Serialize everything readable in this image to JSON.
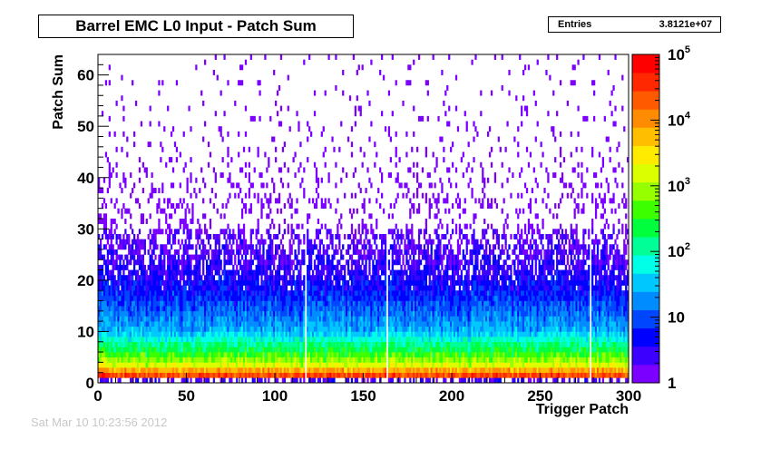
{
  "chart_data": {
    "type": "heatmap",
    "title": "Barrel EMC L0 Input - Patch Sum",
    "xlabel": "Trigger Patch",
    "ylabel": "Patch Sum",
    "xlim": [
      0,
      300
    ],
    "ylim": [
      0,
      64
    ],
    "x_ticks": [
      "0",
      "50",
      "100",
      "150",
      "200",
      "250",
      "300"
    ],
    "y_ticks": [
      "0",
      "10",
      "20",
      "30",
      "40",
      "50",
      "60"
    ],
    "z_scale": "log",
    "zlim": [
      1,
      100000
    ],
    "colorbar_ticks": [
      {
        "base": "1",
        "exp": ""
      },
      {
        "base": "10",
        "exp": ""
      },
      {
        "base": "10",
        "exp": "2"
      },
      {
        "base": "10",
        "exp": "3"
      },
      {
        "base": "10",
        "exp": "4"
      },
      {
        "base": "10",
        "exp": "5"
      }
    ],
    "stats": {
      "label": "Entries",
      "value": "3.8121e+07"
    },
    "dead_patches": [
      117,
      163,
      278
    ],
    "profile": [
      {
        "sum": 0,
        "counts": 1
      },
      {
        "sum": 1,
        "counts": 40000
      },
      {
        "sum": 2,
        "counts": 20000
      },
      {
        "sum": 3,
        "counts": 3000
      },
      {
        "sum": 4,
        "counts": 1000
      },
      {
        "sum": 6,
        "counts": 300
      },
      {
        "sum": 8,
        "counts": 100
      },
      {
        "sum": 10,
        "counts": 30
      },
      {
        "sum": 15,
        "counts": 10
      },
      {
        "sum": 20,
        "counts": 4
      },
      {
        "sum": 27,
        "counts": 2
      },
      {
        "sum": 35,
        "counts": 1
      },
      {
        "sum": 64,
        "counts": 1
      }
    ],
    "colors": [
      "#7b00ff",
      "#3c00ff",
      "#0000ff",
      "#0046ff",
      "#008cff",
      "#00c8ff",
      "#00ffe6",
      "#00ff96",
      "#00ff3c",
      "#3cff00",
      "#96ff00",
      "#dcff00",
      "#ffeb00",
      "#ffbe00",
      "#ff8c00",
      "#ff5a00",
      "#ff2800",
      "#ff0000"
    ]
  },
  "footer": "Sat Mar 10 10:23:56 2012"
}
